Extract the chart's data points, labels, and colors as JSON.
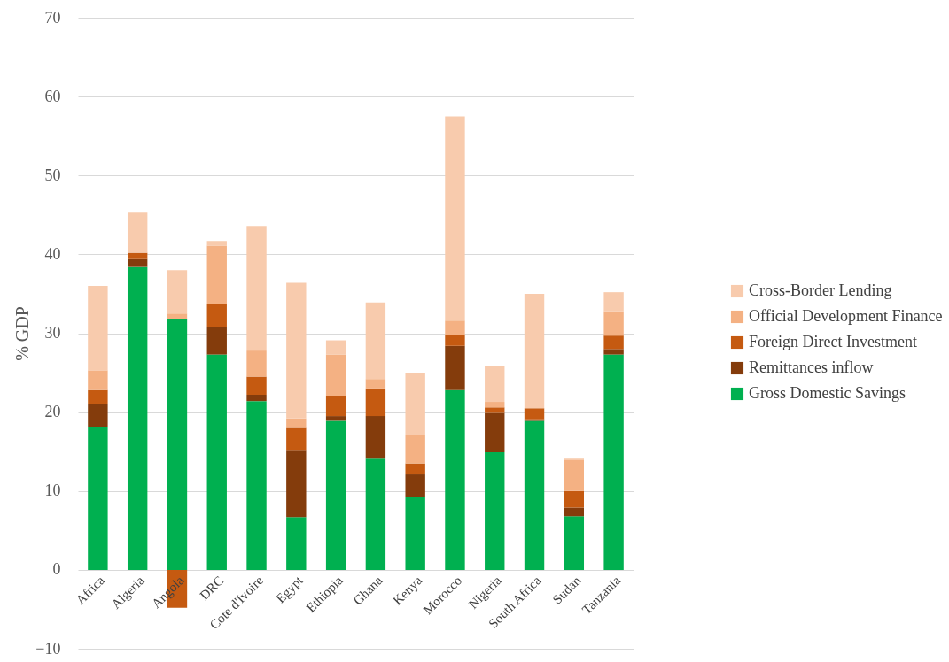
{
  "chart_data": {
    "type": "bar",
    "stacked": true,
    "ylabel": "% GDP",
    "categories": [
      "Africa",
      "Algeria",
      "Angola",
      "DRC",
      "Cote d'Ivoire",
      "Egypt",
      "Ethiopia",
      "Ghana",
      "Kenya",
      "Morocco",
      "Nigeria",
      "South Africa",
      "Sudan",
      "Tanzania"
    ],
    "series": [
      {
        "name": "Gross Domestic Savings",
        "color": "#00b050",
        "values": [
          18.1,
          38.4,
          31.8,
          27.3,
          21.4,
          6.7,
          18.9,
          14.1,
          9.2,
          22.8,
          14.9,
          18.9,
          6.8,
          27.3
        ]
      },
      {
        "name": "Remittances inflow",
        "color": "#843c0c",
        "values": [
          2.9,
          1.0,
          0,
          3.5,
          0.8,
          8.4,
          0.6,
          5.4,
          2.9,
          5.6,
          5.0,
          0.2,
          1.1,
          0.7
        ]
      },
      {
        "name": "Foreign Direct Investment",
        "color": "#c55a11",
        "values": [
          1.8,
          0.8,
          -4.8,
          2.9,
          2.3,
          2.9,
          2.6,
          3.5,
          1.4,
          1.4,
          0.7,
          1.4,
          2.1,
          1.7
        ]
      },
      {
        "name": "Official Development Finance",
        "color": "#f4b183",
        "values": [
          2.5,
          0,
          0.7,
          7.4,
          3.3,
          1.2,
          5.2,
          1.2,
          3.6,
          1.8,
          0.7,
          0,
          3.9,
          3.1
        ]
      },
      {
        "name": "Cross-Border Lending",
        "color": "#f8cbad",
        "values": [
          10.7,
          5.1,
          5.5,
          0.6,
          15.8,
          17.2,
          1.8,
          9.7,
          7.9,
          25.9,
          4.6,
          14.5,
          0.2,
          2.4
        ]
      }
    ],
    "ylim": [
      -10,
      70
    ],
    "yticks": [
      -10,
      0,
      10,
      20,
      30,
      40,
      50,
      60,
      70
    ],
    "grid": "y",
    "legend": "right"
  }
}
